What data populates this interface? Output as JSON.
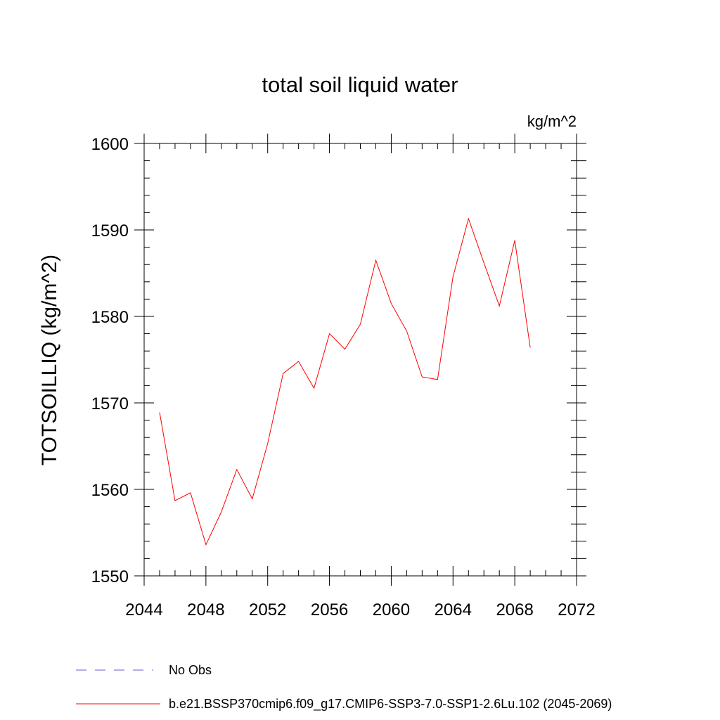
{
  "chart_data": {
    "type": "line",
    "title": "total soil liquid water",
    "units_label": "kg/m^2",
    "ylabel": "TOTSOILLIQ  (kg/m^2)",
    "xlabel": "",
    "xlim": [
      2044,
      2072
    ],
    "ylim": [
      1550,
      1600
    ],
    "x_ticks": [
      2044,
      2048,
      2052,
      2056,
      2060,
      2064,
      2068,
      2072
    ],
    "y_ticks": [
      1550,
      1560,
      1570,
      1580,
      1590,
      1600
    ],
    "grid": false,
    "legend_position": "bottom",
    "series": [
      {
        "name": "b.e21.BSSP370cmip6.f09_g17.CMIP6-SSP3-7.0-SSP1-2.6Lu.102 (2045-2069)",
        "color": "#ff0000",
        "line_style": "solid",
        "x": [
          2045,
          2046,
          2047,
          2048,
          2049,
          2050,
          2051,
          2052,
          2053,
          2054,
          2055,
          2056,
          2057,
          2058,
          2059,
          2060,
          2061,
          2062,
          2063,
          2064,
          2065,
          2066,
          2067,
          2068,
          2069
        ],
        "values": [
          1568.9,
          1558.7,
          1559.6,
          1553.6,
          1557.4,
          1562.3,
          1558.9,
          1565.3,
          1573.4,
          1574.8,
          1571.7,
          1578.0,
          1576.2,
          1579.1,
          1586.5,
          1581.5,
          1578.3,
          1573.0,
          1572.7,
          1584.6,
          1591.3,
          1586.2,
          1581.2,
          1588.8,
          1576.4
        ]
      }
    ],
    "legend": [
      {
        "label": "No Obs",
        "color": "#6a5acd",
        "line_style": "dashed"
      },
      {
        "label": "b.e21.BSSP370cmip6.f09_g17.CMIP6-SSP3-7.0-SSP1-2.6Lu.102 (2045-2069)",
        "color": "#ff0000",
        "line_style": "solid"
      }
    ]
  }
}
